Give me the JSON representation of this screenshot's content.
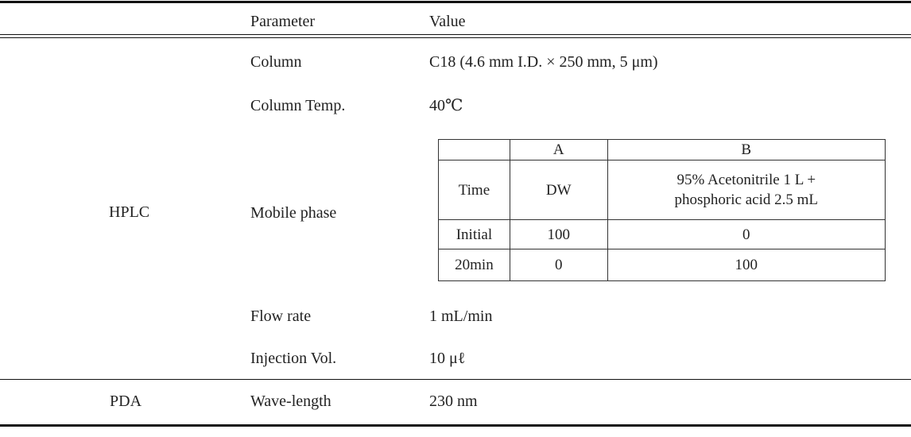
{
  "table": {
    "header": {
      "parameter": "Parameter",
      "value": "Value"
    },
    "groups": [
      {
        "name": "HPLC",
        "rows": [
          {
            "parameter": "Column",
            "value": "C18 (4.6 mm I.D. × 250 mm, 5 μm)"
          },
          {
            "parameter": "Column Temp.",
            "value": "40℃"
          },
          {
            "parameter": "Mobile phase",
            "gradient": {
              "header": [
                "A",
                "B"
              ],
              "subheader": [
                "Time",
                "DW",
                "95% Acetonitrile 1 L + phosphoric acid 2.5 mL"
              ],
              "rows": [
                [
                  "Initial",
                  "100",
                  "0"
                ],
                [
                  "20min",
                  "0",
                  "100"
                ]
              ]
            }
          },
          {
            "parameter": "Flow rate",
            "value": "1 mL/min"
          },
          {
            "parameter": "Injection Vol.",
            "value": "10 μℓ"
          }
        ]
      },
      {
        "name": "PDA",
        "rows": [
          {
            "parameter": "Wave-length",
            "value": "230 nm"
          }
        ]
      }
    ]
  }
}
